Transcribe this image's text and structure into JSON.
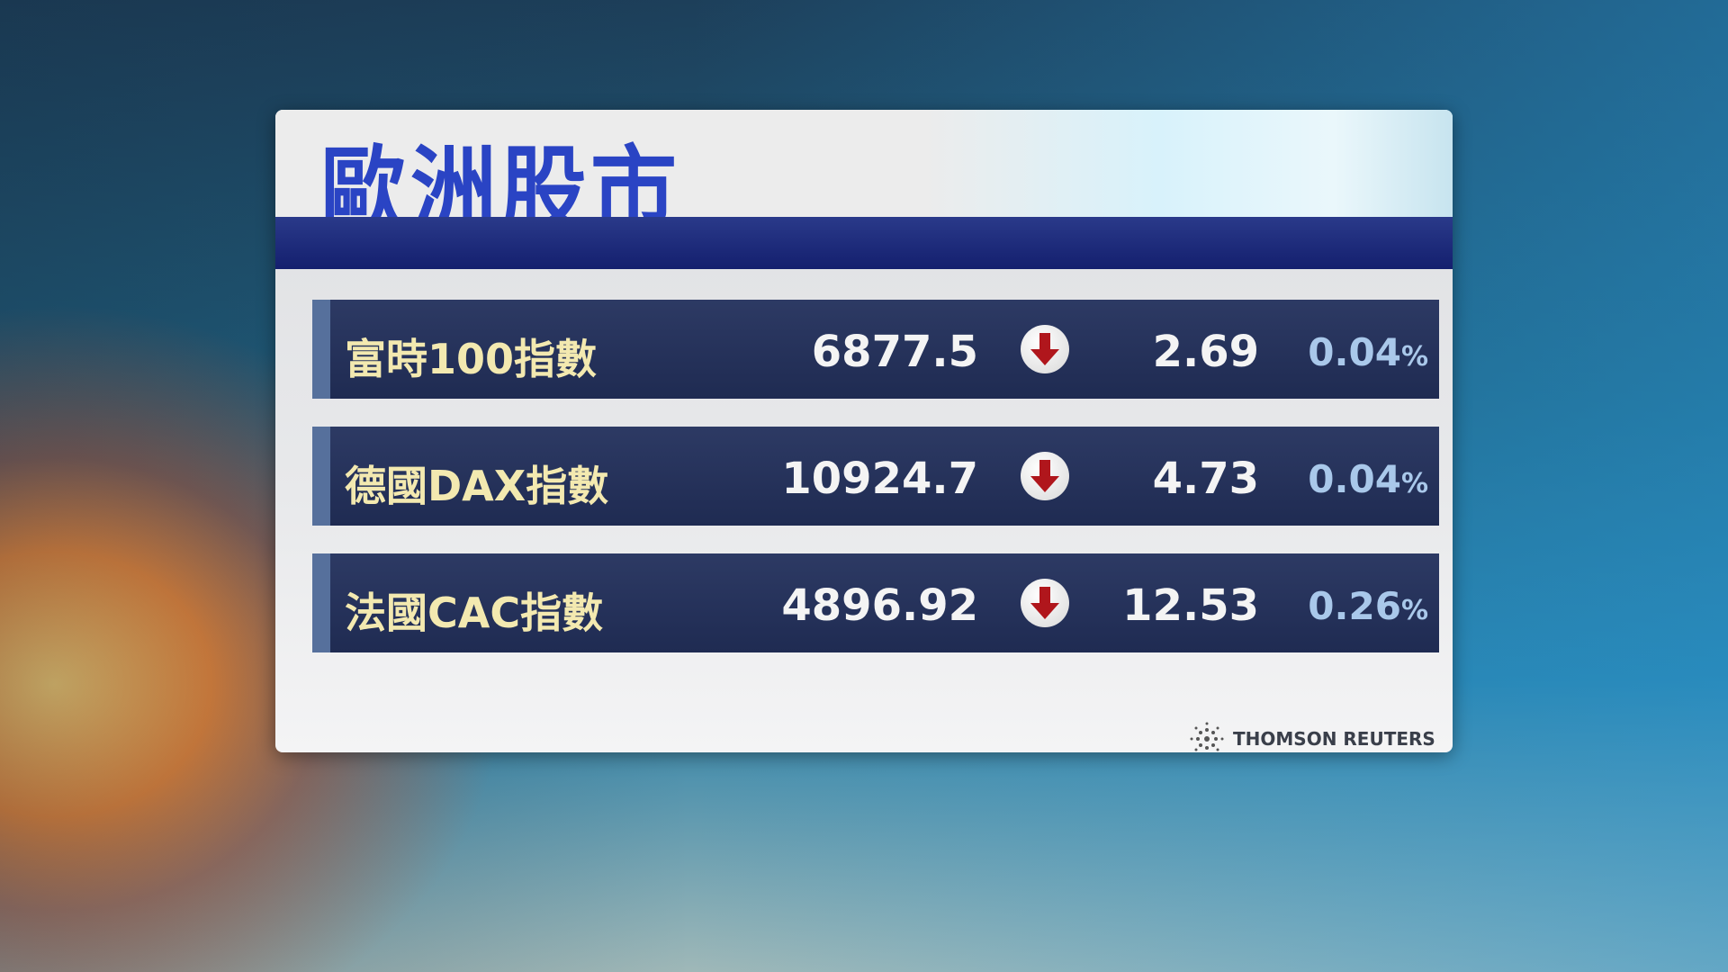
{
  "title": "歐洲股市",
  "rows": [
    {
      "name": "富時100指數",
      "value": "6877.5",
      "direction": "down",
      "change": "2.69",
      "percent": "0.04",
      "unit": "%"
    },
    {
      "name": "德國DAX指數",
      "value": "10924.7",
      "direction": "down",
      "change": "4.73",
      "percent": "0.04",
      "unit": "%"
    },
    {
      "name": "法國CAC指數",
      "value": "4896.92",
      "direction": "down",
      "change": "12.53",
      "percent": "0.26",
      "unit": "%"
    }
  ],
  "source": "THOMSON REUTERS",
  "colors": {
    "title": "#2a44c4",
    "down_arrow": "#b0161c",
    "name_text": "#f3e9b0",
    "percent_text": "#a9c8ea"
  }
}
